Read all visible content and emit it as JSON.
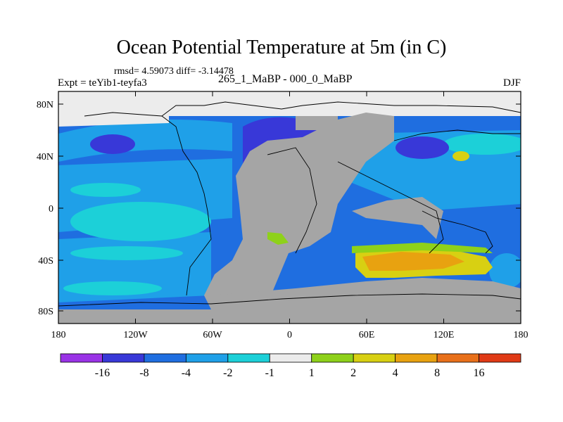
{
  "title": "Ocean Potential Temperature at 5m (in C)",
  "stats_text": "rmsd= 4.59073 diff= -3.14478",
  "experiment_text": "Expt = teYib1-teyfa3",
  "case_text": "265_1_MaBP - 000_0_MaBP",
  "season": "DJF",
  "lat_ticks": [
    "80N",
    "40N",
    "0",
    "40S",
    "80S"
  ],
  "lon_ticks": [
    "180",
    "120W",
    "60W",
    "0",
    "60E",
    "120E",
    "180"
  ],
  "colorbar": {
    "colors": [
      "#9a33e6",
      "#3838d8",
      "#1f6ee0",
      "#1fa0e8",
      "#1cd0d8",
      "#ececec",
      "#8ed11a",
      "#d8d012",
      "#e8a210",
      "#e8701a",
      "#e03a16"
    ],
    "labels": [
      "-16",
      "-8",
      "-4",
      "-2",
      "-1",
      "1",
      "2",
      "4",
      "8",
      "16"
    ]
  },
  "palette": {
    "land": "#a5a5a5",
    "sea_ice_or_zero": "#ececec",
    "plot_border": "#000000"
  }
}
